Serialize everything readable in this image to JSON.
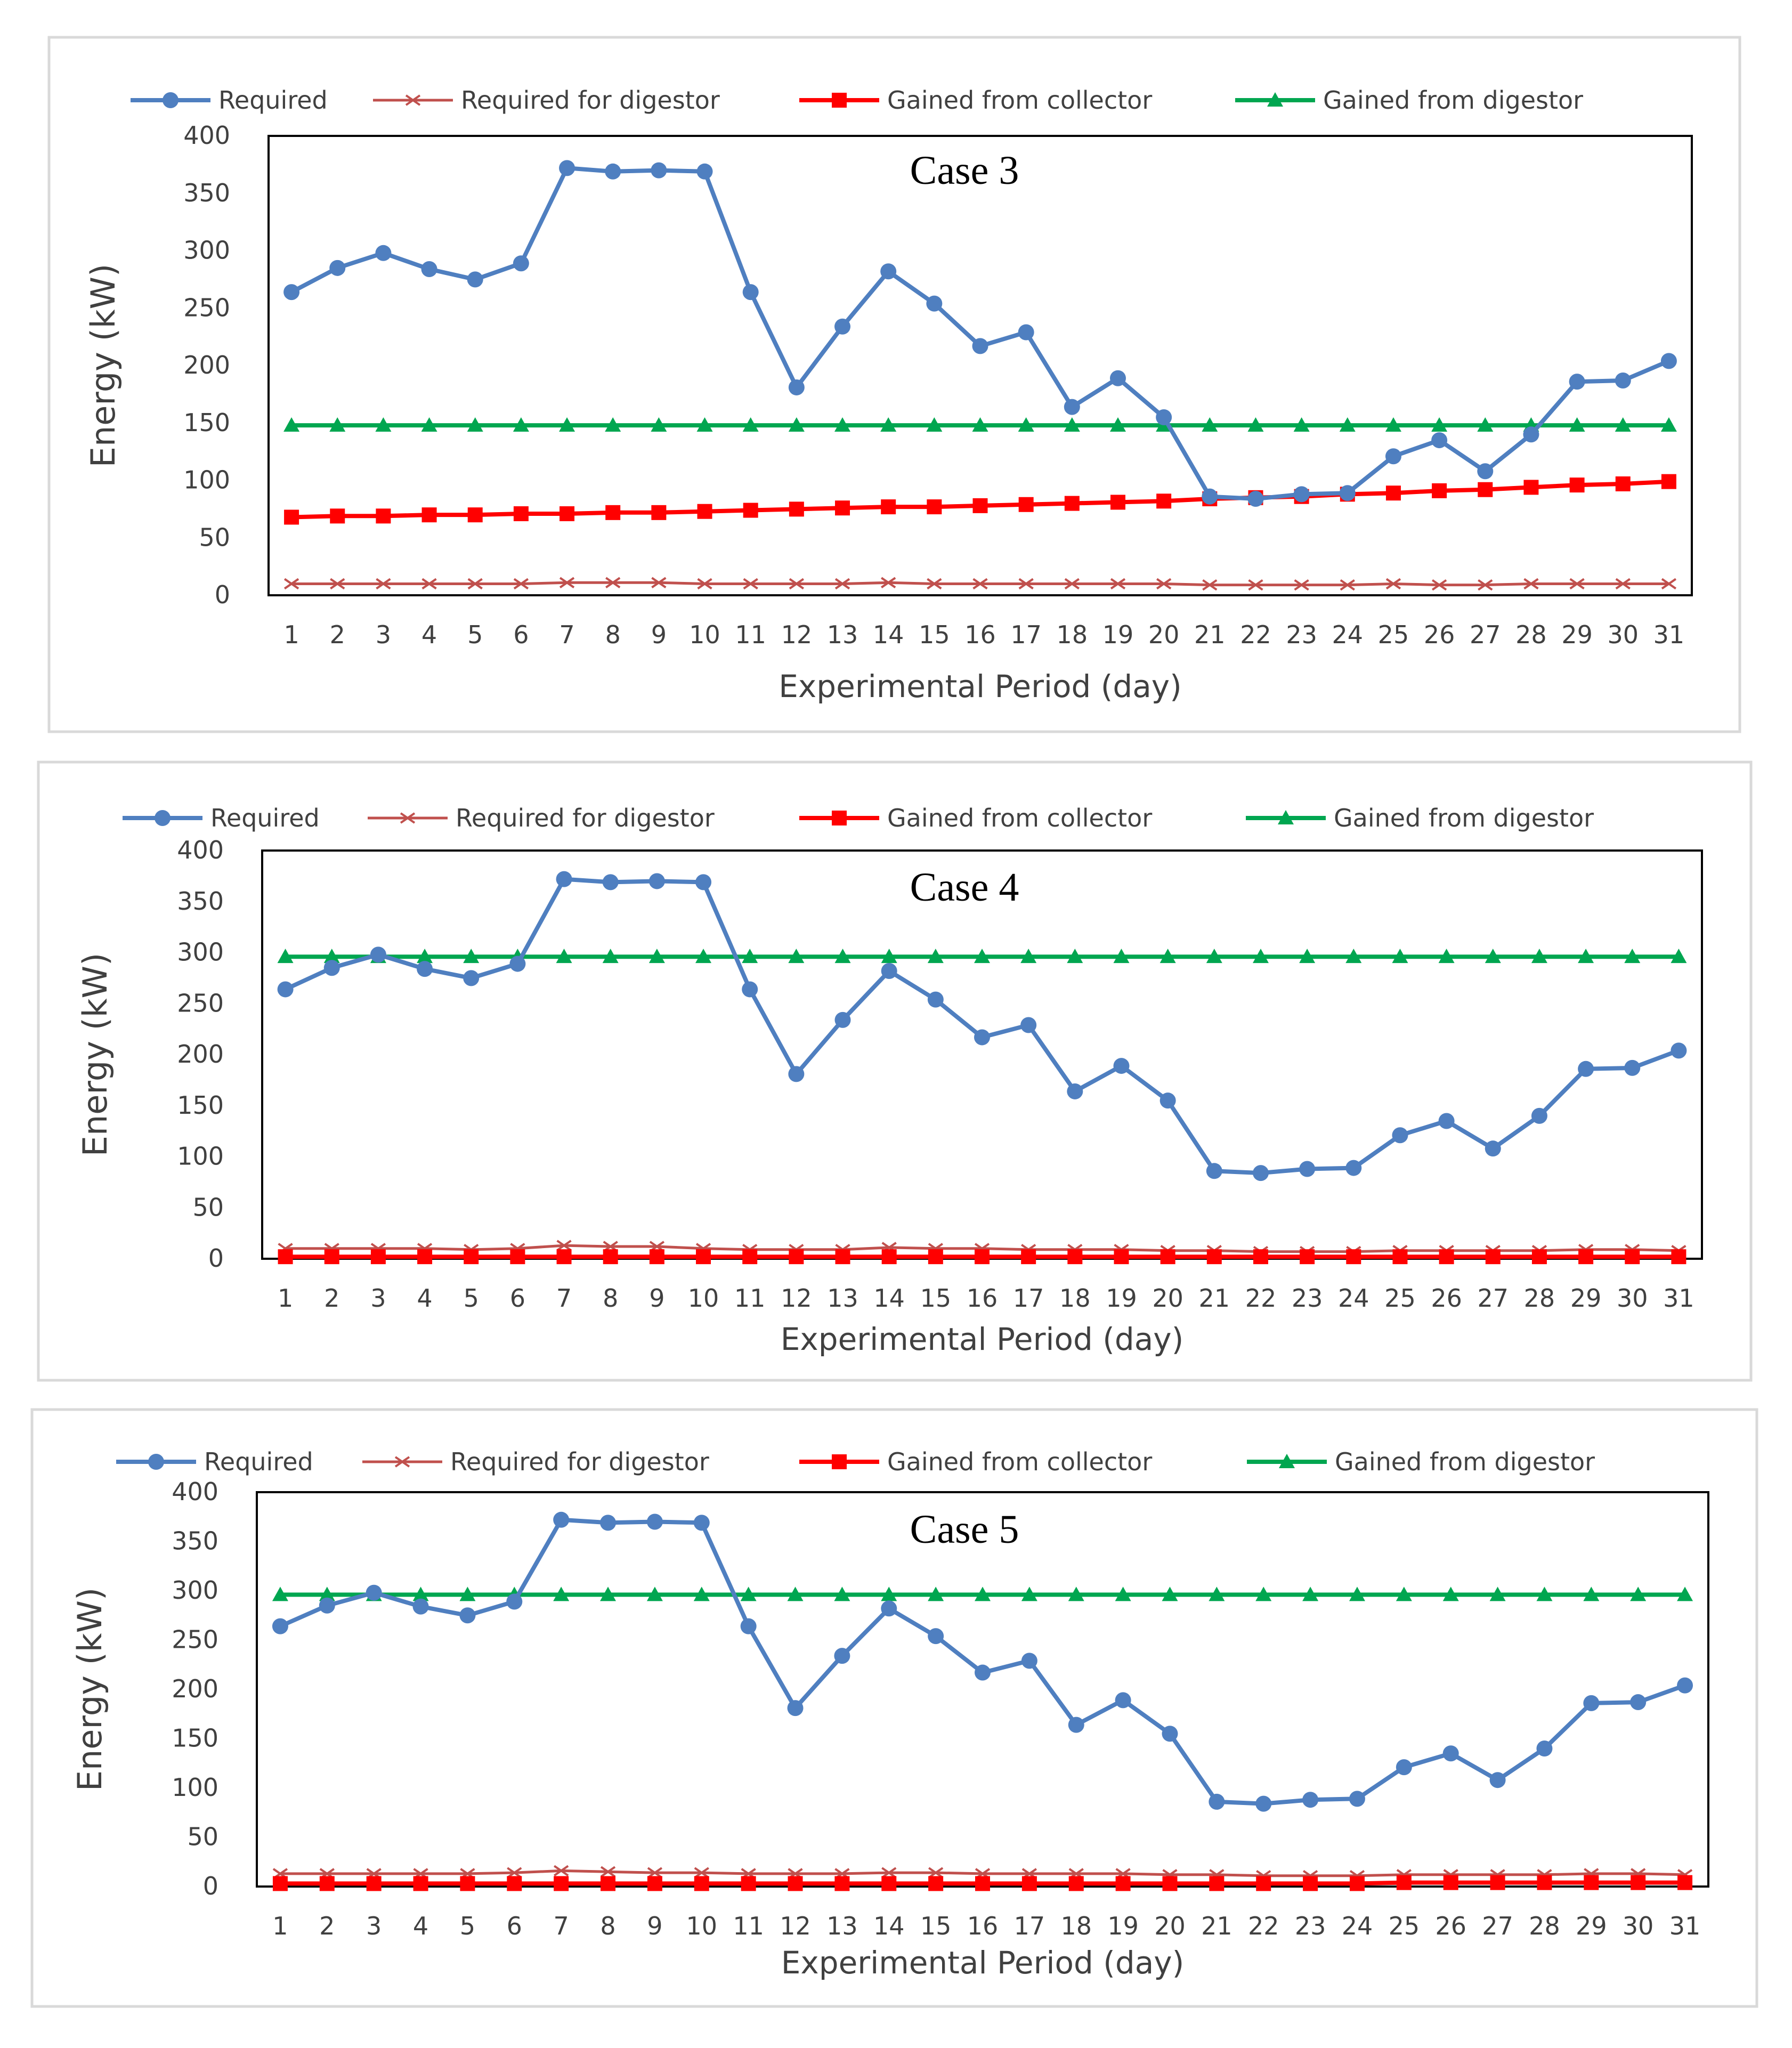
{
  "chart_data": [
    {
      "type": "line",
      "annotation": "Case 3",
      "xlabel": "Experimental Period (day)",
      "ylabel": "Energy (kW)",
      "ylim": [
        0,
        400
      ],
      "yticks": [
        0,
        50,
        100,
        150,
        200,
        250,
        300,
        350,
        400
      ],
      "categories": [
        "1",
        "2",
        "3",
        "4",
        "5",
        "6",
        "7",
        "8",
        "9",
        "10",
        "11",
        "12",
        "13",
        "14",
        "15",
        "16",
        "17",
        "18",
        "19",
        "20",
        "21",
        "22",
        "23",
        "24",
        "25",
        "26",
        "27",
        "28",
        "29",
        "30",
        "31"
      ],
      "legend_position": "top",
      "series": [
        {
          "name": "Required",
          "color": "#4f7fc0",
          "marker": "circle",
          "values": [
            264,
            285,
            298,
            284,
            275,
            289,
            372,
            369,
            370,
            369,
            264,
            181,
            234,
            282,
            254,
            217,
            229,
            164,
            189,
            155,
            86,
            84,
            88,
            89,
            121,
            135,
            108,
            140,
            186,
            187,
            204
          ]
        },
        {
          "name": "Required for digestor",
          "color": "#c0504d",
          "marker": "x",
          "values": [
            10,
            10,
            10,
            10,
            10,
            10,
            11,
            11,
            11,
            10,
            10,
            10,
            10,
            11,
            10,
            10,
            10,
            10,
            10,
            10,
            9,
            9,
            9,
            9,
            10,
            9,
            9,
            10,
            10,
            10,
            10
          ]
        },
        {
          "name": "Gained from collector",
          "color": "#ff0000",
          "marker": "square",
          "values": [
            68,
            69,
            69,
            70,
            70,
            71,
            71,
            72,
            72,
            73,
            74,
            75,
            76,
            77,
            77,
            78,
            79,
            80,
            81,
            82,
            84,
            85,
            86,
            88,
            89,
            91,
            92,
            94,
            96,
            97,
            99
          ]
        },
        {
          "name": "Gained from digestor",
          "color": "#00a650",
          "marker": "triangle",
          "values": [
            148,
            148,
            148,
            148,
            148,
            148,
            148,
            148,
            148,
            148,
            148,
            148,
            148,
            148,
            148,
            148,
            148,
            148,
            148,
            148,
            148,
            148,
            148,
            148,
            148,
            148,
            148,
            148,
            148,
            148,
            148
          ]
        }
      ]
    },
    {
      "type": "line",
      "annotation": "Case 4",
      "xlabel": "Experimental Period (day)",
      "ylabel": "Energy (kW)",
      "ylim": [
        0,
        400
      ],
      "yticks": [
        0,
        50,
        100,
        150,
        200,
        250,
        300,
        350,
        400
      ],
      "categories": [
        "1",
        "2",
        "3",
        "4",
        "5",
        "6",
        "7",
        "8",
        "9",
        "10",
        "11",
        "12",
        "13",
        "14",
        "15",
        "16",
        "17",
        "18",
        "19",
        "20",
        "21",
        "22",
        "23",
        "24",
        "25",
        "26",
        "27",
        "28",
        "29",
        "30",
        "31"
      ],
      "legend_position": "top",
      "series": [
        {
          "name": "Required",
          "color": "#4f7fc0",
          "marker": "circle",
          "values": [
            264,
            285,
            298,
            284,
            275,
            289,
            372,
            369,
            370,
            369,
            264,
            181,
            234,
            282,
            254,
            217,
            229,
            164,
            189,
            155,
            86,
            84,
            88,
            89,
            121,
            135,
            108,
            140,
            186,
            187,
            204
          ]
        },
        {
          "name": "Required for digestor",
          "color": "#c0504d",
          "marker": "x",
          "values": [
            10,
            10,
            10,
            10,
            9,
            10,
            13,
            12,
            12,
            10,
            9,
            9,
            9,
            11,
            10,
            10,
            9,
            9,
            9,
            8,
            8,
            7,
            7,
            7,
            8,
            8,
            8,
            8,
            9,
            9,
            8
          ]
        },
        {
          "name": "Gained from collector",
          "color": "#ff0000",
          "marker": "square",
          "values": [
            2,
            2,
            2,
            2,
            2,
            2,
            2,
            2,
            2,
            2,
            2,
            2,
            2,
            2,
            2,
            2,
            2,
            2,
            2,
            2,
            2,
            2,
            2,
            2,
            2,
            2,
            2,
            2,
            2,
            2,
            2
          ]
        },
        {
          "name": "Gained from digestor",
          "color": "#00a650",
          "marker": "triangle",
          "values": [
            296,
            296,
            296,
            296,
            296,
            296,
            296,
            296,
            296,
            296,
            296,
            296,
            296,
            296,
            296,
            296,
            296,
            296,
            296,
            296,
            296,
            296,
            296,
            296,
            296,
            296,
            296,
            296,
            296,
            296,
            296
          ]
        }
      ]
    },
    {
      "type": "line",
      "annotation": "Case 5",
      "xlabel": "Experimental Period (day)",
      "ylabel": "Energy (kW)",
      "ylim": [
        0,
        400
      ],
      "yticks": [
        0,
        50,
        100,
        150,
        200,
        250,
        300,
        350,
        400
      ],
      "categories": [
        "1",
        "2",
        "3",
        "4",
        "5",
        "6",
        "7",
        "8",
        "9",
        "10",
        "11",
        "12",
        "13",
        "14",
        "15",
        "16",
        "17",
        "18",
        "19",
        "20",
        "21",
        "22",
        "23",
        "24",
        "25",
        "26",
        "27",
        "28",
        "29",
        "30",
        "31"
      ],
      "legend_position": "top",
      "series": [
        {
          "name": "Required",
          "color": "#4f7fc0",
          "marker": "circle",
          "values": [
            264,
            285,
            298,
            284,
            275,
            289,
            372,
            369,
            370,
            369,
            264,
            181,
            234,
            282,
            254,
            217,
            229,
            164,
            189,
            155,
            86,
            84,
            88,
            89,
            121,
            135,
            108,
            140,
            186,
            187,
            204
          ]
        },
        {
          "name": "Required for digestor",
          "color": "#c0504d",
          "marker": "x",
          "values": [
            13,
            13,
            13,
            13,
            13,
            14,
            16,
            15,
            14,
            14,
            13,
            13,
            13,
            14,
            14,
            13,
            13,
            13,
            13,
            12,
            12,
            11,
            11,
            11,
            12,
            12,
            12,
            12,
            13,
            13,
            12
          ]
        },
        {
          "name": "Gained from collector",
          "color": "#ff0000",
          "marker": "square",
          "values": [
            3,
            3,
            3,
            3,
            3,
            3,
            3,
            3,
            3,
            3,
            3,
            3,
            3,
            3,
            3,
            3,
            3,
            3,
            3,
            3,
            3,
            3,
            3,
            3,
            4,
            4,
            4,
            4,
            4,
            4,
            4
          ]
        },
        {
          "name": "Gained from digestor",
          "color": "#00a650",
          "marker": "triangle",
          "values": [
            296,
            296,
            296,
            296,
            296,
            296,
            296,
            296,
            296,
            296,
            296,
            296,
            296,
            296,
            296,
            296,
            296,
            296,
            296,
            296,
            296,
            296,
            296,
            296,
            296,
            296,
            296,
            296,
            296,
            296,
            296
          ]
        }
      ]
    }
  ]
}
